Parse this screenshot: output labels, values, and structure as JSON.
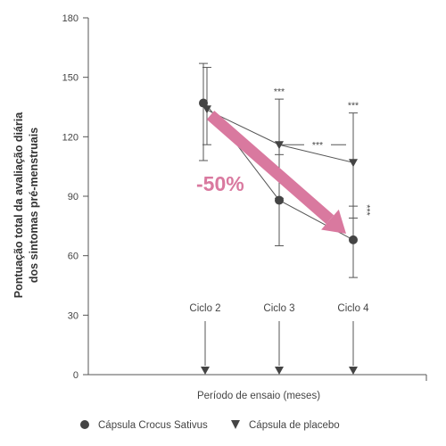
{
  "chart_data": {
    "type": "line",
    "title": "",
    "xlabel": "Período de ensaio (meses)",
    "ylabel_line1": "Pontuação total da avaliação diária",
    "ylabel_line2": "dos sintomas pré-menstruais",
    "ylim": [
      0,
      180
    ],
    "yticks": [
      0,
      30,
      60,
      90,
      120,
      150,
      180
    ],
    "categories": [
      "Ciclo 2",
      "Ciclo 3",
      "Ciclo 4"
    ],
    "series": [
      {
        "name": "Cápsula Crocus Sativus",
        "marker": "circle",
        "values": [
          137,
          88,
          68
        ],
        "err_upper": [
          157,
          111,
          85
        ],
        "err_lower": [
          108,
          65,
          49
        ]
      },
      {
        "name": "Cápsula de placebo",
        "marker": "triangle-down",
        "values": [
          134,
          116,
          107
        ],
        "err_upper": [
          155,
          139,
          132
        ],
        "err_lower": [
          116,
          89,
          79
        ]
      }
    ],
    "significance": [
      {
        "label": "***",
        "at": "Ciclo 3",
        "position": "above"
      },
      {
        "label": "***",
        "at": "Ciclo 4",
        "position": "above"
      },
      {
        "label": "***",
        "at": "Ciclo 3-4",
        "position": "bracket"
      },
      {
        "label": "***",
        "at": "Ciclo 4",
        "position": "side"
      }
    ],
    "annotation": {
      "label": "-50%",
      "color": "#d9799f"
    },
    "colors": {
      "axis": "#555555",
      "series": "#555555",
      "arrow": "#d9799f"
    }
  }
}
